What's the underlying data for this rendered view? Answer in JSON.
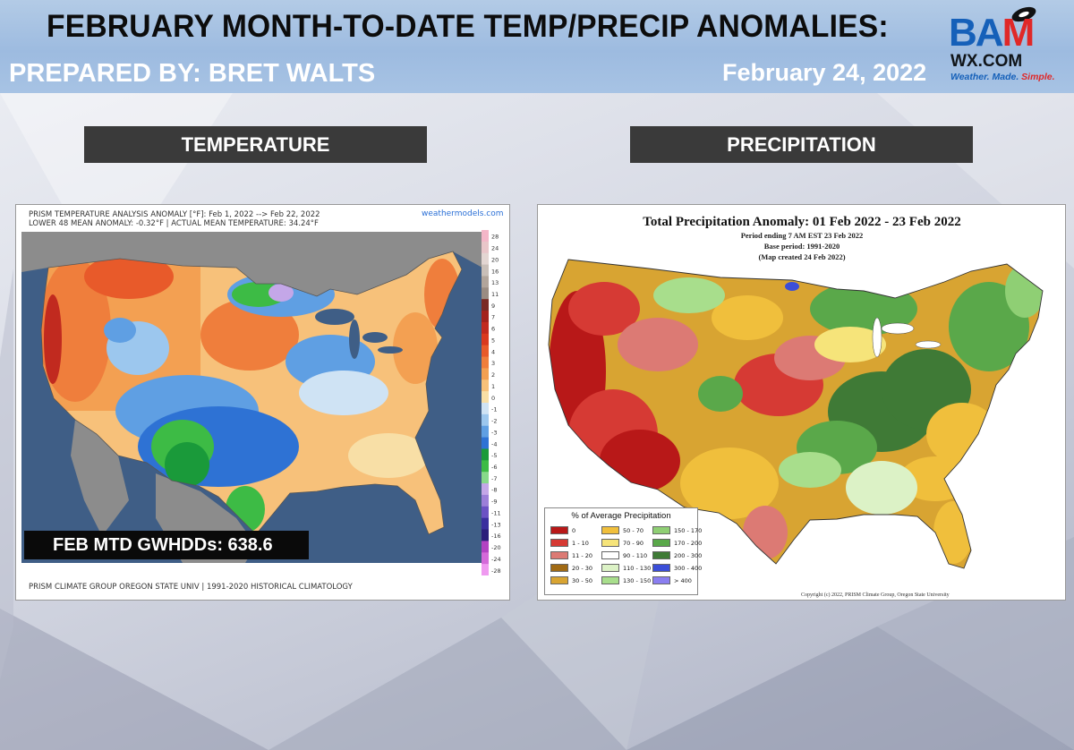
{
  "header": {
    "title": "FEBRUARY MONTH-TO-DATE TEMP/PRECIP ANOMALIES:",
    "prepared_by": "PREPARED BY: BRET WALTS",
    "date": "February 24, 2022"
  },
  "logo": {
    "word_ba": "BA",
    "word_m": "M",
    "domain": "WX.COM",
    "tag_part1": "Weather. Made. ",
    "tag_part2": "Simple."
  },
  "sections": {
    "temperature_label": "TEMPERATURE",
    "precipitation_label": "PRECIPITATION"
  },
  "temperature_map": {
    "header_line1": "PRISM TEMPERATURE ANALYSIS ANOMALY [°F]: Feb 1, 2022 --> Feb 22, 2022",
    "header_line2": "LOWER 48 MEAN ANOMALY: -0.32°F | ACTUAL MEAN TEMPERATURE: 34.24°F",
    "source_link": "weathermodels.com",
    "gwhdd_text": "FEB MTD GWHDDs: 638.6",
    "footer": "PRISM CLIMATE GROUP OREGON STATE UNIV | 1991-2020 HISTORICAL CLIMATOLOGY",
    "colorbar": [
      {
        "label": "28",
        "color": "#f4b6c8"
      },
      {
        "label": "24",
        "color": "#e9c6c9"
      },
      {
        "label": "20",
        "color": "#e3d6d2"
      },
      {
        "label": "16",
        "color": "#c9bfb8"
      },
      {
        "label": "13",
        "color": "#b2a59b"
      },
      {
        "label": "11",
        "color": "#9a8c82"
      },
      {
        "label": "9",
        "color": "#7a2a24"
      },
      {
        "label": "7",
        "color": "#a3221c"
      },
      {
        "label": "6",
        "color": "#c12a1f"
      },
      {
        "label": "5",
        "color": "#d9391f"
      },
      {
        "label": "4",
        "color": "#e85a2a"
      },
      {
        "label": "3",
        "color": "#ef7e3c"
      },
      {
        "label": "2",
        "color": "#f3a052"
      },
      {
        "label": "1",
        "color": "#f7c17a"
      },
      {
        "label": "0",
        "color": "#f8dfa6"
      },
      {
        "label": "-1",
        "color": "#cfe3f4"
      },
      {
        "label": "-2",
        "color": "#9cc7ee"
      },
      {
        "label": "-3",
        "color": "#5f9fe3"
      },
      {
        "label": "-4",
        "color": "#2e72d4"
      },
      {
        "label": "-5",
        "color": "#1a9a3a"
      },
      {
        "label": "-6",
        "color": "#3dbb45"
      },
      {
        "label": "-7",
        "color": "#87d98a"
      },
      {
        "label": "-8",
        "color": "#c4a7e8"
      },
      {
        "label": "-9",
        "color": "#9c7fd9"
      },
      {
        "label": "-11",
        "color": "#6b52c4"
      },
      {
        "label": "-13",
        "color": "#3a2f9e"
      },
      {
        "label": "-16",
        "color": "#2a1e7a"
      },
      {
        "label": "-20",
        "color": "#b243c2"
      },
      {
        "label": "-24",
        "color": "#d46ad9"
      },
      {
        "label": "-28",
        "color": "#ef9af0"
      }
    ]
  },
  "precip_map": {
    "title": "Total Precipitation Anomaly: 01 Feb 2022 - 23 Feb 2022",
    "sub1": "Period ending 7 AM EST 23 Feb 2022",
    "sub2": "Base period: 1991-2020",
    "sub3": "(Map created 24 Feb 2022)",
    "legend_title": "% of Average Precipitation",
    "legend": [
      {
        "label": "0",
        "color": "#b81818"
      },
      {
        "label": "1 - 10",
        "color": "#d63a34"
      },
      {
        "label": "11 - 20",
        "color": "#dc7a74"
      },
      {
        "label": "20 - 30",
        "color": "#a06a14"
      },
      {
        "label": "30 - 50",
        "color": "#d8a432"
      },
      {
        "label": "50 - 70",
        "color": "#f0bf3c"
      },
      {
        "label": "70 - 90",
        "color": "#f6e47a"
      },
      {
        "label": "90 - 110",
        "color": "#ffffff"
      },
      {
        "label": "110 - 130",
        "color": "#dcf2c6"
      },
      {
        "label": "130 - 150",
        "color": "#a8de8c"
      },
      {
        "label": "150 - 170",
        "color": "#8fcf74"
      },
      {
        "label": "170 - 200",
        "color": "#5aa84a"
      },
      {
        "label": "200 - 300",
        "color": "#3f7a36"
      },
      {
        "label": "300 - 400",
        "color": "#3b4ed8"
      },
      {
        "label": "> 400",
        "color": "#8a7ef0"
      }
    ],
    "copyright": "Copyright (c) 2022, PRISM Climate Group, Oregon State University"
  }
}
